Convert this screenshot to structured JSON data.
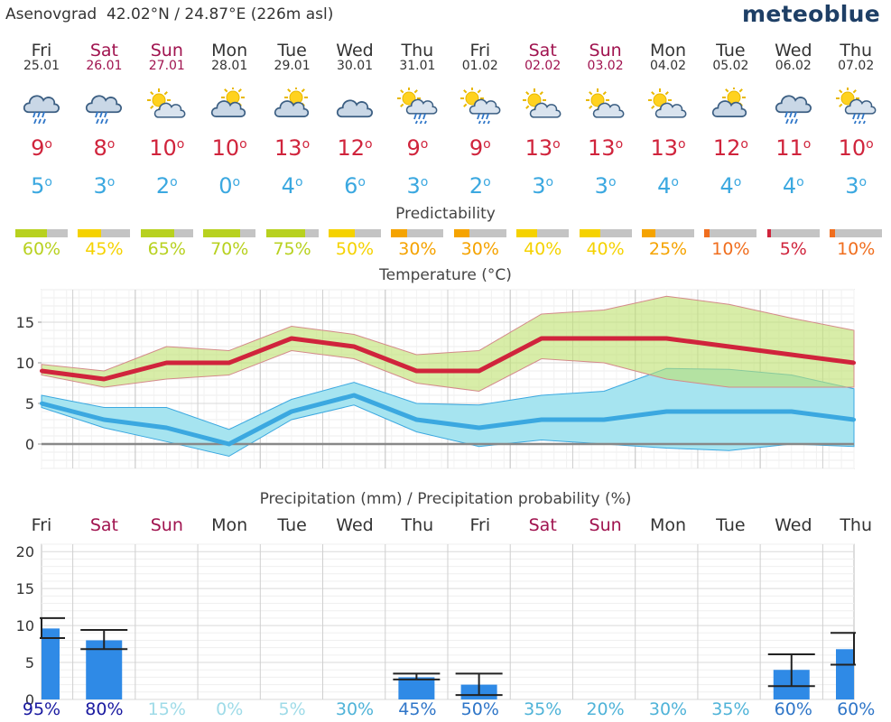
{
  "header": {
    "location": "Asenovgrad",
    "coords": "42.02°N / 24.87°E (226m asl)",
    "brand": "meteoblue"
  },
  "colors": {
    "weekday": "#333333",
    "weekend": "#a0134f",
    "max": "#d0243c",
    "min": "#3ba8e0"
  },
  "days": [
    {
      "name": "Fri",
      "date": "25.01",
      "weekend": false,
      "icon": "cloud-rain-icon",
      "max": "9",
      "min": "5",
      "pred": 60,
      "pred_label": "60%"
    },
    {
      "name": "Sat",
      "date": "26.01",
      "weekend": true,
      "icon": "cloud-rain-icon",
      "max": "8",
      "min": "3",
      "pred": 45,
      "pred_label": "45%"
    },
    {
      "name": "Sun",
      "date": "27.01",
      "weekend": true,
      "icon": "sun-cloud-icon",
      "max": "10",
      "min": "2",
      "pred": 65,
      "pred_label": "65%"
    },
    {
      "name": "Mon",
      "date": "28.01",
      "weekend": false,
      "icon": "cloud-sun-icon",
      "max": "10",
      "min": "0",
      "pred": 70,
      "pred_label": "70%"
    },
    {
      "name": "Tue",
      "date": "29.01",
      "weekend": false,
      "icon": "cloud-sun-icon",
      "max": "13",
      "min": "4",
      "pred": 75,
      "pred_label": "75%"
    },
    {
      "name": "Wed",
      "date": "30.01",
      "weekend": false,
      "icon": "cloud-icon",
      "max": "12",
      "min": "6",
      "pred": 50,
      "pred_label": "50%"
    },
    {
      "name": "Thu",
      "date": "31.01",
      "weekend": false,
      "icon": "sun-cloud-rain-icon",
      "max": "9",
      "min": "3",
      "pred": 30,
      "pred_label": "30%"
    },
    {
      "name": "Fri",
      "date": "01.02",
      "weekend": false,
      "icon": "sun-cloud-rain-icon",
      "max": "9",
      "min": "2",
      "pred": 30,
      "pred_label": "30%"
    },
    {
      "name": "Sat",
      "date": "02.02",
      "weekend": true,
      "icon": "sun-cloud-icon",
      "max": "13",
      "min": "3",
      "pred": 40,
      "pred_label": "40%"
    },
    {
      "name": "Sun",
      "date": "03.02",
      "weekend": true,
      "icon": "sun-cloud-icon",
      "max": "13",
      "min": "3",
      "pred": 40,
      "pred_label": "40%"
    },
    {
      "name": "Mon",
      "date": "04.02",
      "weekend": false,
      "icon": "sun-cloud-icon",
      "max": "13",
      "min": "4",
      "pred": 25,
      "pred_label": "25%"
    },
    {
      "name": "Tue",
      "date": "05.02",
      "weekend": false,
      "icon": "cloud-sun-icon",
      "max": "12",
      "min": "4",
      "pred": 10,
      "pred_label": "10%"
    },
    {
      "name": "Wed",
      "date": "06.02",
      "weekend": false,
      "icon": "cloud-rain-icon",
      "max": "11",
      "min": "4",
      "pred": 5,
      "pred_label": "5%"
    },
    {
      "name": "Thu",
      "date": "07.02",
      "weekend": false,
      "icon": "sun-cloud-rain-icon",
      "max": "10",
      "min": "3",
      "pred": 10,
      "pred_label": "10%"
    }
  ],
  "predictability": {
    "title": "Predictability"
  },
  "temperature": {
    "title": "Temperature (°C)"
  },
  "precipitation": {
    "title": "Precipitation (mm) / Precipitation probability (%)"
  },
  "chart_data": [
    {
      "type": "line",
      "title": "Temperature (°C)",
      "categories": [
        "Fri",
        "Sat",
        "Sun",
        "Mon",
        "Tue",
        "Wed",
        "Thu",
        "Fri",
        "Sat",
        "Sun",
        "Mon",
        "Tue",
        "Wed",
        "Thu"
      ],
      "ylim": [
        -3,
        19
      ],
      "yticks": [
        0,
        5,
        10,
        15
      ],
      "grid": true,
      "series": [
        {
          "values": [
            9,
            8,
            10,
            10,
            13,
            12,
            9,
            9,
            13,
            13,
            13,
            12,
            11,
            10
          ]
        },
        {
          "values": [
            5,
            3,
            2,
            0,
            4,
            6,
            3,
            2,
            3,
            3,
            4,
            4,
            4,
            3
          ]
        }
      ],
      "max_range": {
        "low": [
          8.5,
          7,
          8,
          8.5,
          11.5,
          10.5,
          7.5,
          6.5,
          10.5,
          10,
          8,
          7,
          7,
          7
        ],
        "high": [
          9.8,
          9,
          12,
          11.5,
          14.5,
          13.5,
          11,
          11.5,
          16,
          16.5,
          18.2,
          17.2,
          15.5,
          14
        ]
      },
      "min_range": {
        "low": [
          4.5,
          2,
          0.3,
          -1.5,
          3,
          4.8,
          1.5,
          -0.3,
          0.5,
          0,
          -0.5,
          -0.8,
          0,
          -0.3
        ],
        "high": [
          6,
          4.5,
          4.5,
          1.8,
          5.5,
          7.6,
          5,
          4.8,
          6,
          6.5,
          9.3,
          9.2,
          8.5,
          6.8
        ]
      }
    },
    {
      "type": "bar",
      "title": "Precipitation (mm) / Precipitation probability (%)",
      "categories": [
        "Fri",
        "Sat",
        "Sun",
        "Mon",
        "Tue",
        "Wed",
        "Thu",
        "Fri",
        "Sat",
        "Sun",
        "Mon",
        "Tue",
        "Wed",
        "Thu"
      ],
      "ylim": [
        0,
        21
      ],
      "yticks": [
        0,
        5,
        10,
        15,
        20
      ],
      "values": [
        9.6,
        8,
        0,
        0,
        0,
        0,
        3,
        2,
        0,
        0,
        0,
        0,
        4,
        6.8
      ],
      "range_low": [
        8.3,
        6.8,
        null,
        null,
        null,
        null,
        2.7,
        0.6,
        null,
        null,
        null,
        null,
        1.8,
        4.7
      ],
      "range_high": [
        11,
        9.4,
        null,
        null,
        null,
        null,
        3.5,
        3.5,
        null,
        null,
        null,
        null,
        6.1,
        9
      ],
      "probability": [
        95,
        80,
        15,
        0,
        5,
        30,
        45,
        50,
        35,
        20,
        30,
        35,
        60,
        60
      ],
      "probability_labels": [
        "95%",
        "80%",
        "15%",
        "0%",
        "5%",
        "30%",
        "45%",
        "50%",
        "35%",
        "20%",
        "30%",
        "35%",
        "60%",
        "60%"
      ]
    }
  ]
}
